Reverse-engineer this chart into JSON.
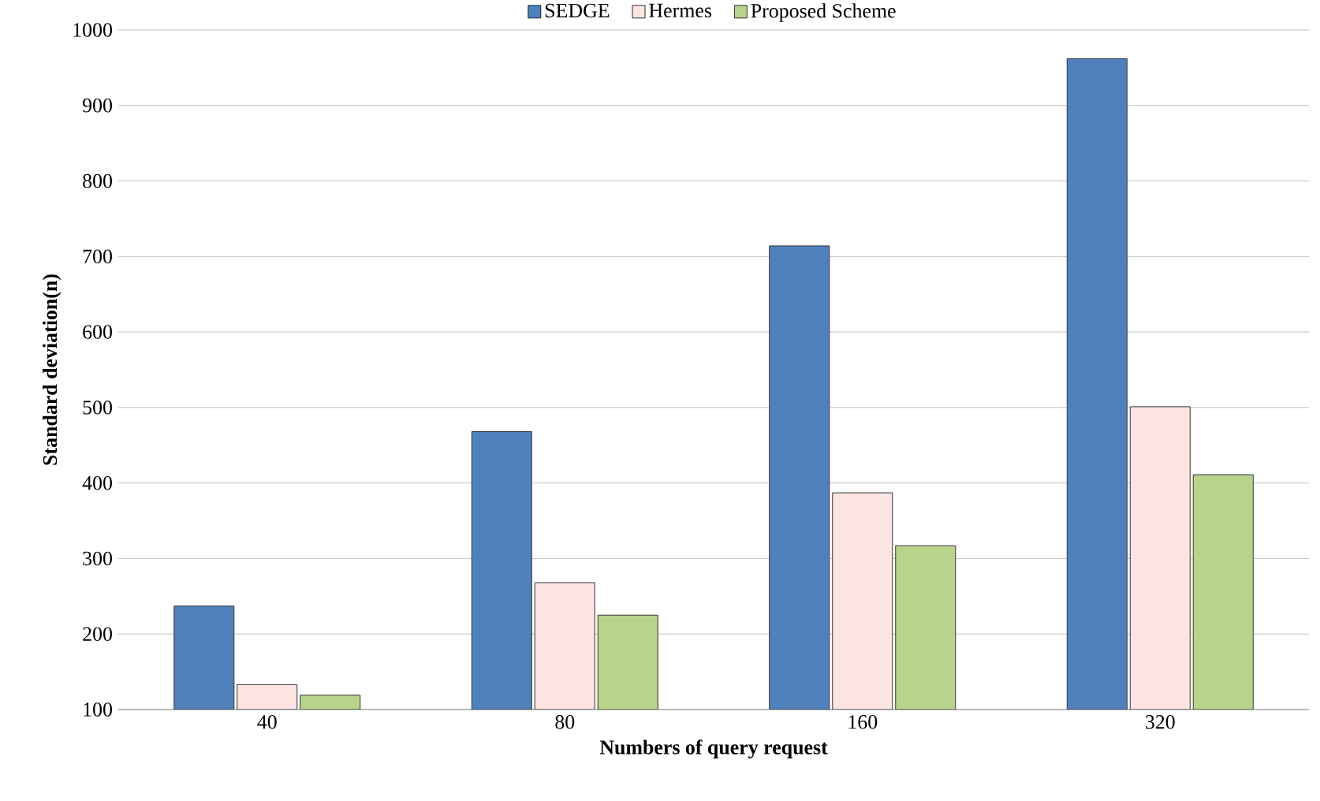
{
  "chart_data": {
    "type": "bar",
    "xlabel": "Numbers of query request",
    "ylabel": "Standard deviation(n)",
    "categories": [
      "40",
      "80",
      "160",
      "320"
    ],
    "series": [
      {
        "name": "SEDGE",
        "color": "#4f81bd",
        "values": [
          237,
          468,
          714,
          962
        ]
      },
      {
        "name": "Hermes",
        "color": "#fbe4e2",
        "values": [
          133,
          268,
          387,
          501
        ]
      },
      {
        "name": "Proposed Scheme",
        "color": "#b9d48a",
        "values": [
          119,
          225,
          317,
          411
        ]
      }
    ],
    "ylim": [
      100,
      1000
    ],
    "yticks": [
      100,
      200,
      300,
      400,
      500,
      600,
      700,
      800,
      900,
      1000
    ],
    "grid": "y",
    "legend": "top"
  }
}
